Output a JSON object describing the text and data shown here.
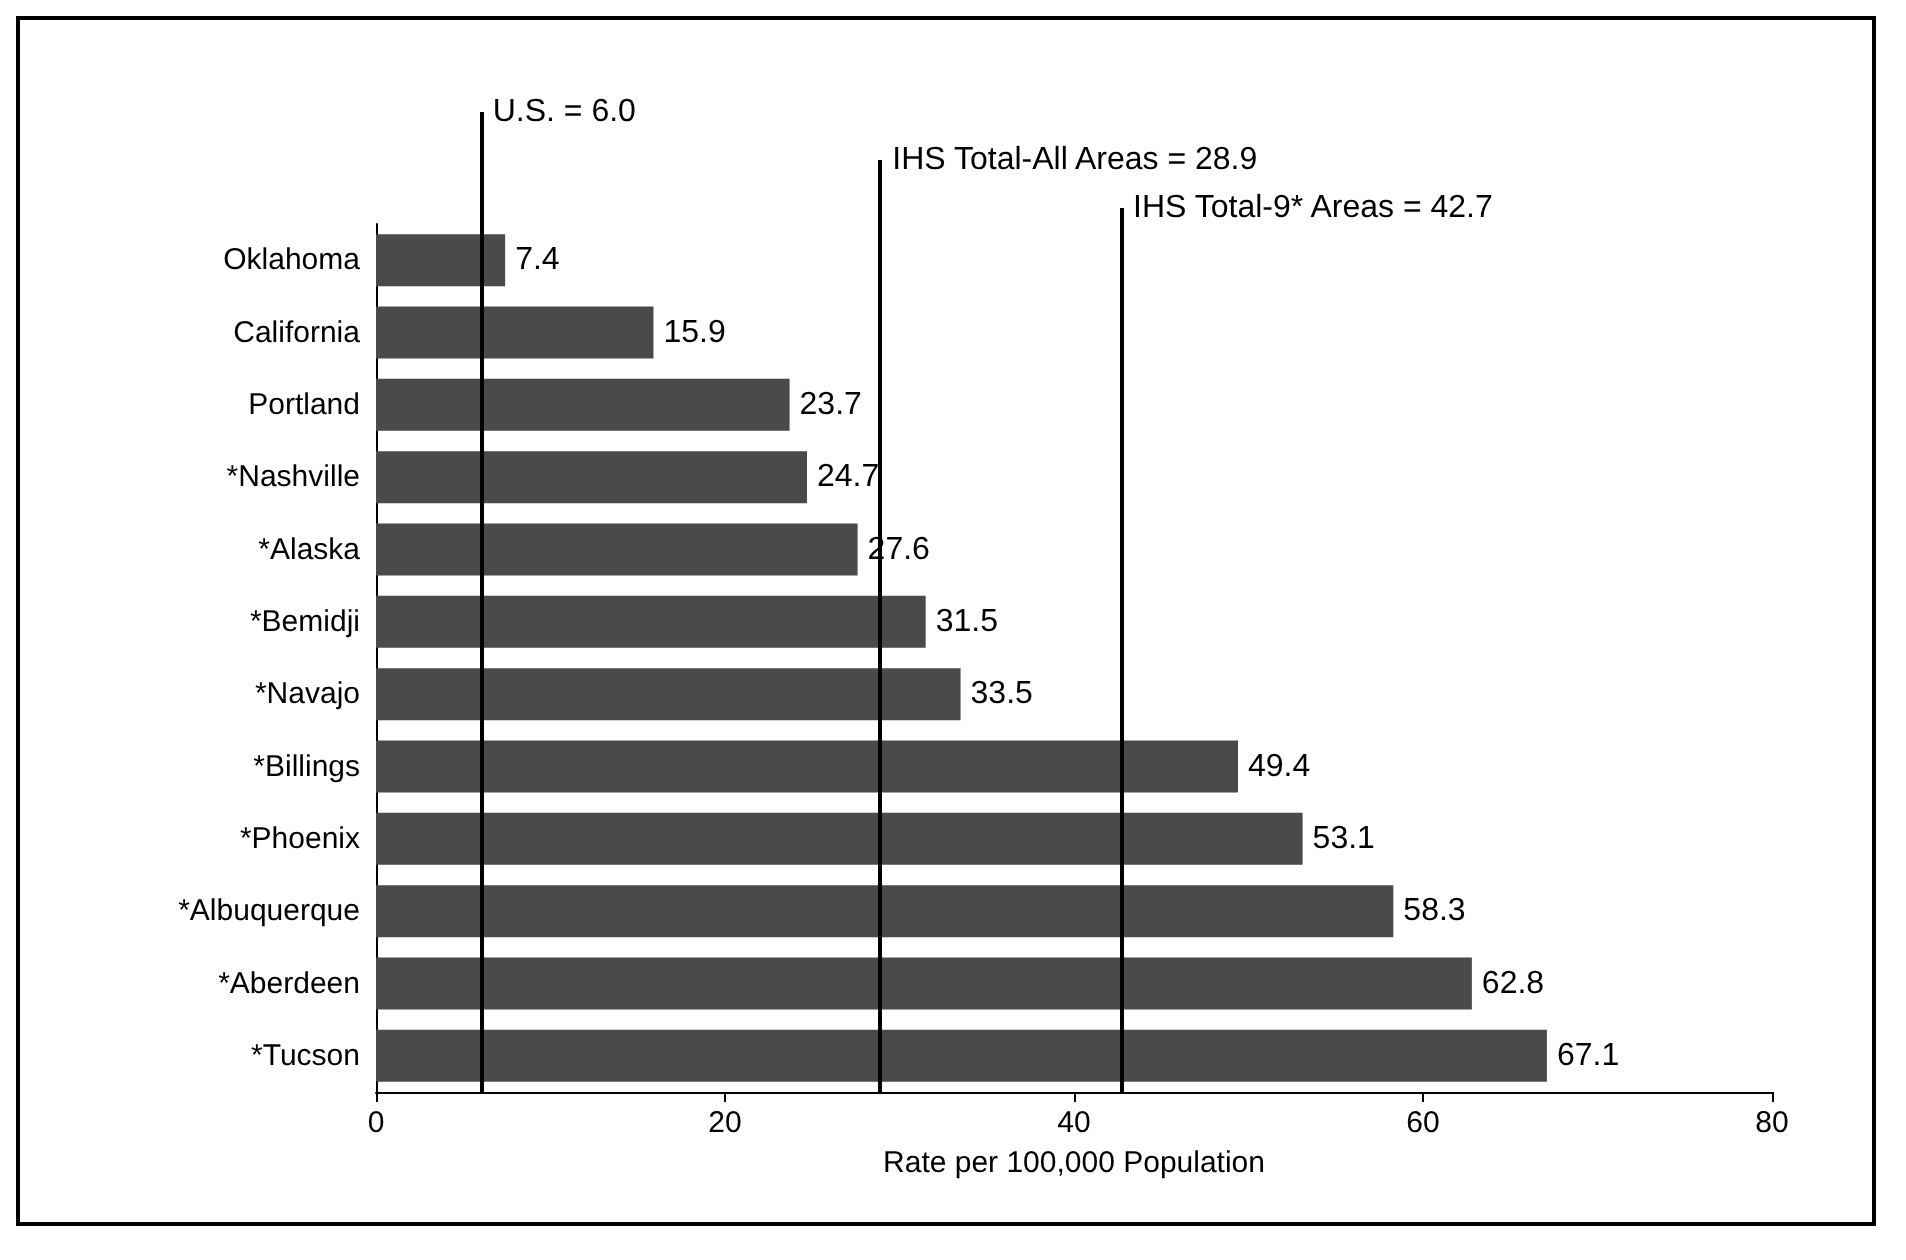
{
  "chart_data": {
    "type": "bar",
    "orientation": "horizontal",
    "xlabel": "Rate per 100,000 Population",
    "categories": [
      "Oklahoma",
      "California",
      "Portland",
      "*Nashville",
      "*Alaska",
      "*Bemidji",
      "*Navajo",
      "*Billings",
      "*Phoenix",
      "*Albuquerque",
      "*Aberdeen",
      "*Tucson"
    ],
    "values": [
      7.4,
      15.9,
      23.7,
      24.7,
      27.6,
      31.5,
      33.5,
      49.4,
      53.1,
      58.3,
      62.8,
      67.1
    ],
    "color": "#4a4a4a",
    "data_labels": true,
    "xlim": [
      0,
      80
    ],
    "xticks": [
      0,
      20,
      40,
      60,
      80
    ],
    "grid": false,
    "ref_lines": [
      {
        "axis": "x",
        "value": 6.0,
        "label": "U.S. = 6.0",
        "color": "#000000"
      },
      {
        "axis": "x",
        "value": 28.9,
        "label": "IHS Total-All Areas = 28.9",
        "color": "#000000"
      },
      {
        "axis": "x",
        "value": 42.7,
        "label": "IHS Total-9* Areas = 42.7",
        "color": "#000000"
      }
    ]
  }
}
